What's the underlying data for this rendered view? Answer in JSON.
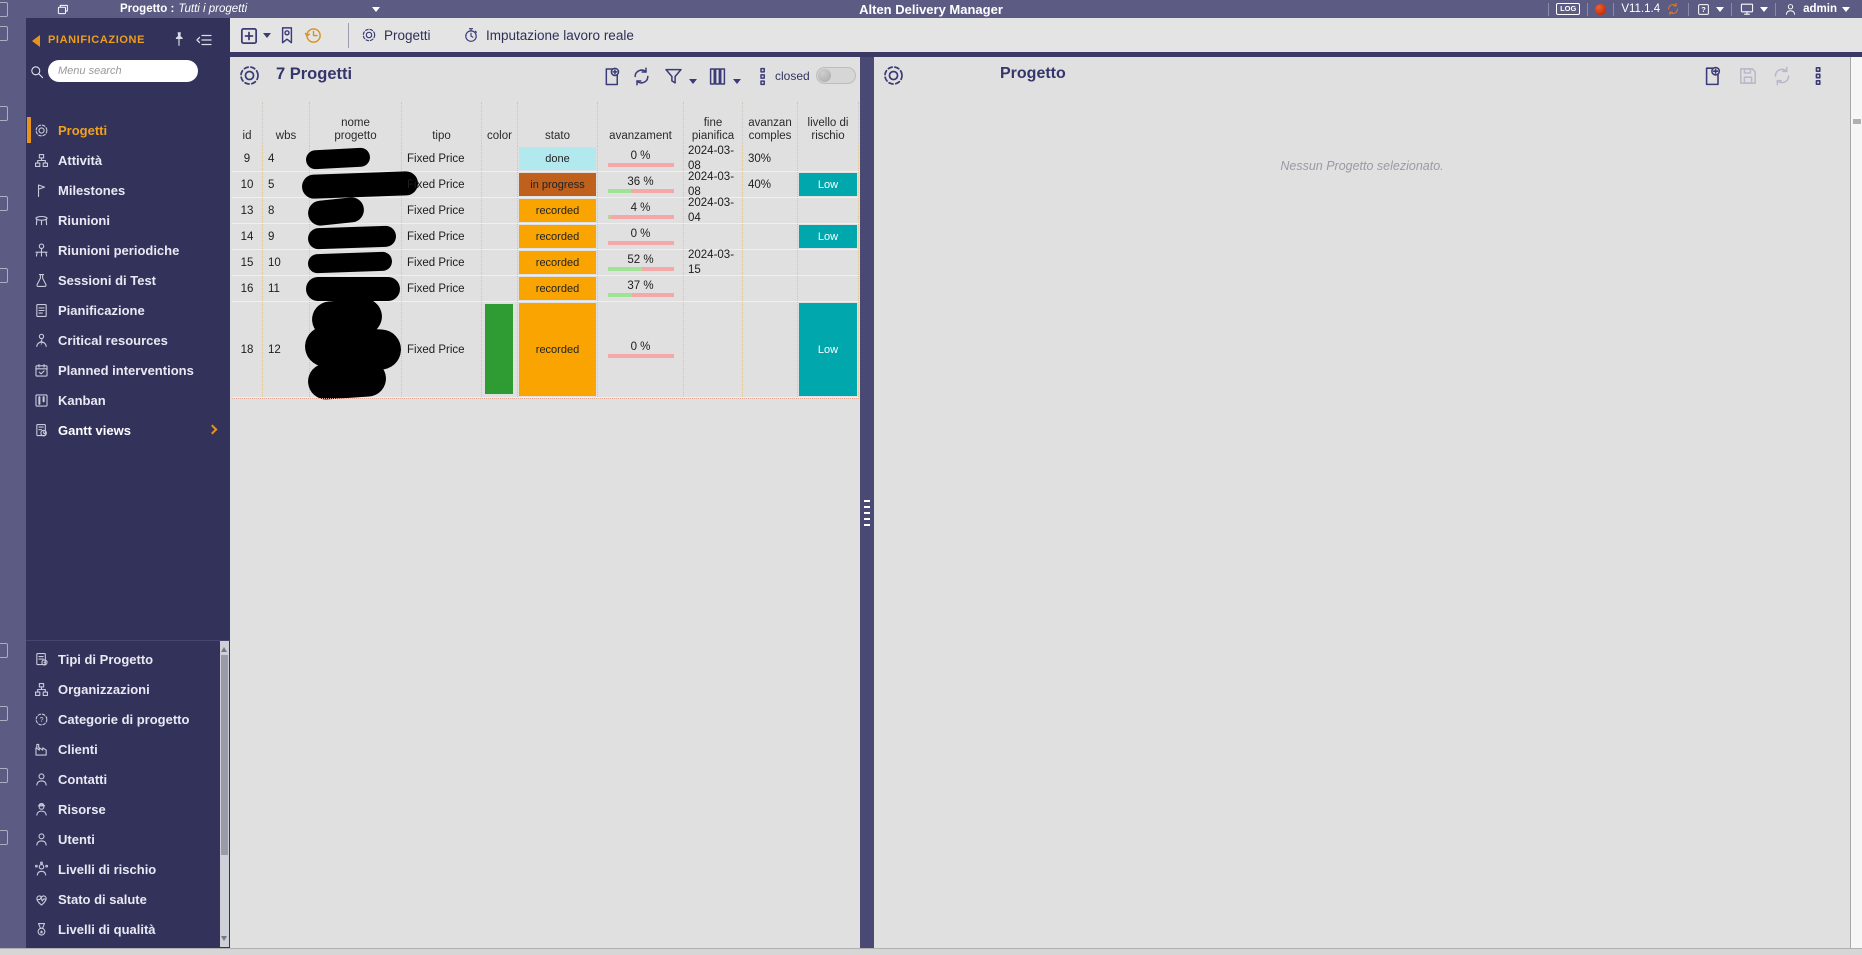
{
  "topbar": {
    "project_label": "Progetto :",
    "project_value": "Tutti i progetti",
    "app_title": "Alten Delivery Manager",
    "log_label": "LOG",
    "version": "V11.1.4",
    "user": "admin"
  },
  "toolbar": {
    "tabs": [
      {
        "label": "Progetti"
      },
      {
        "label": "Imputazione lavoro reale"
      }
    ]
  },
  "sidebar": {
    "section_title": "PIANIFICAZIONE",
    "search_placeholder": "Menu search",
    "main_items": [
      {
        "label": "Progetti",
        "icon": "gear-icon",
        "active": true
      },
      {
        "label": "Attività",
        "icon": "hierarchy-icon"
      },
      {
        "label": "Milestones",
        "icon": "flag-icon"
      },
      {
        "label": "Riunioni",
        "icon": "meeting-table-icon"
      },
      {
        "label": "Riunioni periodiche",
        "icon": "periodic-meeting-icon"
      },
      {
        "label": "Sessioni di Test",
        "icon": "flask-icon"
      },
      {
        "label": "Pianificazione",
        "icon": "planning-doc-icon"
      },
      {
        "label": "Critical resources",
        "icon": "critical-resource-icon"
      },
      {
        "label": "Planned interventions",
        "icon": "planned-calendar-icon"
      },
      {
        "label": "Kanban",
        "icon": "kanban-icon"
      },
      {
        "label": "Gantt views",
        "icon": "gantt-icon",
        "has_submenu": true
      }
    ],
    "admin_items": [
      {
        "label": "Tipi di Progetto",
        "icon": "doc-gear-icon"
      },
      {
        "label": "Organizzazioni",
        "icon": "orgchart-icon"
      },
      {
        "label": "Categorie di progetto",
        "icon": "category-gear-icon"
      },
      {
        "label": "Clienti",
        "icon": "factory-icon"
      },
      {
        "label": "Contatti",
        "icon": "contact-icon"
      },
      {
        "label": "Risorse",
        "icon": "hardhat-icon"
      },
      {
        "label": "Utenti",
        "icon": "user-icon"
      },
      {
        "label": "Livelli di rischio",
        "icon": "risk-icon"
      },
      {
        "label": "Stato di salute",
        "icon": "health-icon"
      },
      {
        "label": "Livelli di qualità",
        "icon": "medal-icon"
      }
    ]
  },
  "projects_panel": {
    "title": "7 Progetti",
    "closed_label": "closed",
    "columns": [
      "id",
      "wbs",
      "nome\nprogetto",
      "tipo",
      "color",
      "stato",
      "avanzament",
      "fine\npianifica",
      "avanzan\ncomples",
      "livello di\nrischio"
    ],
    "rows": [
      {
        "id": "9",
        "wbs": "4",
        "name_redacted": true,
        "tipo": "Fixed Price",
        "stato": "done",
        "avanzamento": "0 %",
        "pct": 0,
        "fine": "2024-03-08",
        "complessivo": "30%",
        "rischio": ""
      },
      {
        "id": "10",
        "wbs": "5",
        "name_redacted": true,
        "tipo": "Fixed Price",
        "stato": "in progress",
        "avanzamento": "36 %",
        "pct": 36,
        "fine": "2024-03-08",
        "complessivo": "40%",
        "rischio": "Low"
      },
      {
        "id": "13",
        "wbs": "8",
        "name_redacted": true,
        "tipo": "Fixed Price",
        "stato": "recorded",
        "avanzamento": "4 %",
        "pct": 4,
        "fine": "2024-03-04",
        "complessivo": "",
        "rischio": ""
      },
      {
        "id": "14",
        "wbs": "9",
        "name_redacted": true,
        "tipo": "Fixed Price",
        "stato": "recorded",
        "avanzamento": "0 %",
        "pct": 0,
        "fine": "",
        "complessivo": "",
        "rischio": "Low"
      },
      {
        "id": "15",
        "wbs": "10",
        "name_redacted": true,
        "tipo": "Fixed Price",
        "stato": "recorded",
        "avanzamento": "52 %",
        "pct": 52,
        "fine": "2024-03-15",
        "complessivo": "",
        "rischio": ""
      },
      {
        "id": "16",
        "wbs": "11",
        "name_redacted": true,
        "tipo": "Fixed Price",
        "stato": "recorded",
        "avanzamento": "37 %",
        "pct": 37,
        "fine": "",
        "complessivo": "",
        "rischio": ""
      },
      {
        "id": "18",
        "wbs": "12",
        "name_redacted": true,
        "tipo": "Fixed Price",
        "stato": "recorded",
        "avanzamento": "0 %",
        "pct": 0,
        "fine": "",
        "complessivo": "",
        "rischio": "Low",
        "color": "#2e9b33"
      }
    ]
  },
  "detail_panel": {
    "title": "Progetto",
    "empty_message": "Nessun Progetto selezionato."
  },
  "colors": {
    "accent_orange": "#f0a21c",
    "status_done": "#b2e9ef",
    "status_in_progress": "#c0601d",
    "status_recorded": "#f9a400",
    "risk_low": "#00a7ad",
    "swatch_green": "#2e9b33",
    "progress_track_pink": "#f5a8a8",
    "progress_fill_green": "#9fe396"
  }
}
